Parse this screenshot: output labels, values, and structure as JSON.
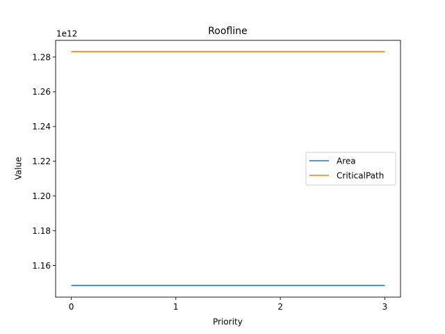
{
  "chart_data": {
    "type": "line",
    "title": "Roofline",
    "xlabel": "Priority",
    "ylabel": "Value",
    "y_offset_label": "1e12",
    "x": [
      0,
      1,
      2,
      3
    ],
    "xticks": [
      0,
      1,
      2,
      3
    ],
    "xtick_labels": [
      "0",
      "1",
      "2",
      "3"
    ],
    "xlim": [
      -0.15,
      3.15
    ],
    "yticks": [
      1.16,
      1.18,
      1.2,
      1.22,
      1.24,
      1.26,
      1.28
    ],
    "ytick_labels": [
      "1.16",
      "1.18",
      "1.20",
      "1.22",
      "1.24",
      "1.26",
      "1.28"
    ],
    "ylim": [
      1.1418,
      1.2896
    ],
    "y_unit_note": "values in units of 1e12",
    "grid": false,
    "legend_position": "center-right",
    "series": [
      {
        "name": "Area",
        "color": "#1f77b4",
        "values": [
          1.1485,
          1.1485,
          1.1485,
          1.1485
        ]
      },
      {
        "name": "CriticalPath",
        "color": "#ff7f0e",
        "values": [
          1.2831,
          1.2831,
          1.2831,
          1.2831
        ]
      }
    ]
  }
}
